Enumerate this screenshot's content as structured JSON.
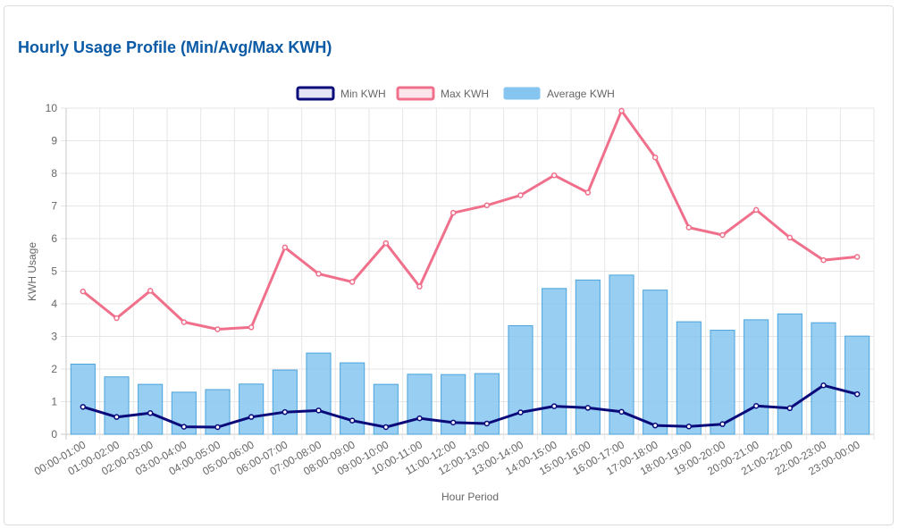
{
  "title": "Hourly Usage Profile (Min/Avg/Max KWH)",
  "chart_data": {
    "type": "bar",
    "categories": [
      "00:00-01:00",
      "01:00-02:00",
      "02:00-03:00",
      "03:00-04:00",
      "04:00-05:00",
      "05:00-06:00",
      "06:00-07:00",
      "07:00-08:00",
      "08:00-09:00",
      "09:00-10:00",
      "10:00-11:00",
      "11:00-12:00",
      "12:00-13:00",
      "13:00-14:00",
      "14:00-15:00",
      "15:00-16:00",
      "16:00-17:00",
      "17:00-18:00",
      "18:00-19:00",
      "19:00-20:00",
      "20:00-21:00",
      "21:00-22:00",
      "22:00-23:00",
      "23:00-00:00"
    ],
    "series": [
      {
        "name": "Min KWH",
        "type": "line",
        "color": "#0a0a7a",
        "values": [
          0.84,
          0.53,
          0.65,
          0.23,
          0.22,
          0.53,
          0.68,
          0.73,
          0.42,
          0.22,
          0.49,
          0.36,
          0.33,
          0.67,
          0.86,
          0.81,
          0.69,
          0.27,
          0.24,
          0.31,
          0.87,
          0.8,
          1.5,
          1.23
        ]
      },
      {
        "name": "Max KWH",
        "type": "line",
        "color": "#f0708c",
        "values": [
          4.38,
          3.56,
          4.4,
          3.44,
          3.22,
          3.28,
          5.73,
          4.92,
          4.67,
          5.86,
          4.53,
          6.79,
          7.02,
          7.33,
          7.94,
          7.41,
          9.92,
          8.49,
          6.34,
          6.11,
          6.88,
          6.03,
          5.34,
          5.44
        ]
      },
      {
        "name": "Average KWH",
        "type": "bar",
        "color": "#86c5f0",
        "values": [
          2.15,
          1.76,
          1.53,
          1.29,
          1.37,
          1.54,
          1.97,
          2.49,
          2.19,
          1.53,
          1.84,
          1.83,
          1.86,
          3.33,
          4.47,
          4.73,
          4.88,
          4.42,
          3.45,
          3.19,
          3.51,
          3.69,
          3.42,
          3.01
        ]
      }
    ],
    "xlabel": "Hour Period",
    "ylabel": "KWH Usage",
    "ylim": [
      0,
      10
    ],
    "yticks": [
      "0",
      "1",
      "2",
      "3",
      "4",
      "5",
      "6",
      "7",
      "8",
      "9",
      "10"
    ],
    "grid": true,
    "legend_position": "top"
  }
}
